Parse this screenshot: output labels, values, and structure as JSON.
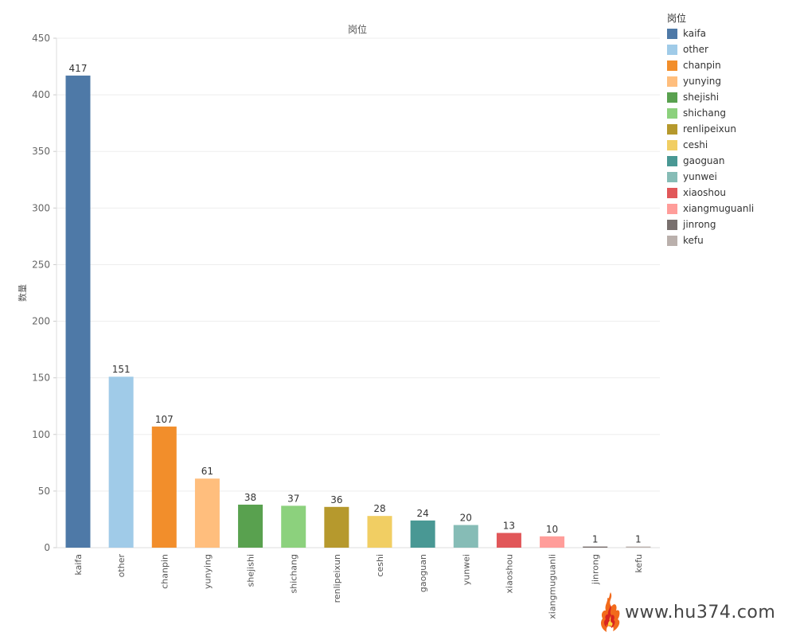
{
  "chart_data": {
    "type": "bar",
    "title": "岗位",
    "xlabel": "",
    "ylabel": "数量",
    "categories": [
      "kaifa",
      "other",
      "chanpin",
      "yunying",
      "shejishi",
      "shichang",
      "renlipeixun",
      "ceshi",
      "gaoguan",
      "yunwei",
      "xiaoshou",
      "xiangmuguanli",
      "jinrong",
      "kefu"
    ],
    "values": [
      417,
      151,
      107,
      61,
      38,
      37,
      36,
      28,
      24,
      20,
      13,
      10,
      1,
      1
    ],
    "colors": [
      "#4e79a7",
      "#a0cbe8",
      "#f28e2b",
      "#ffbe7d",
      "#59a14f",
      "#8cd17d",
      "#b6992d",
      "#f1ce63",
      "#499894",
      "#86bcb6",
      "#e15759",
      "#ff9d9a",
      "#79706e",
      "#bab0ac"
    ],
    "ylim": [
      0,
      450
    ],
    "yticks": [
      0,
      50,
      100,
      150,
      200,
      250,
      300,
      350,
      400,
      450
    ],
    "grid": true,
    "legend": {
      "title": "岗位",
      "position": "top-right"
    }
  },
  "watermark": {
    "text": "www.hu374.com"
  }
}
